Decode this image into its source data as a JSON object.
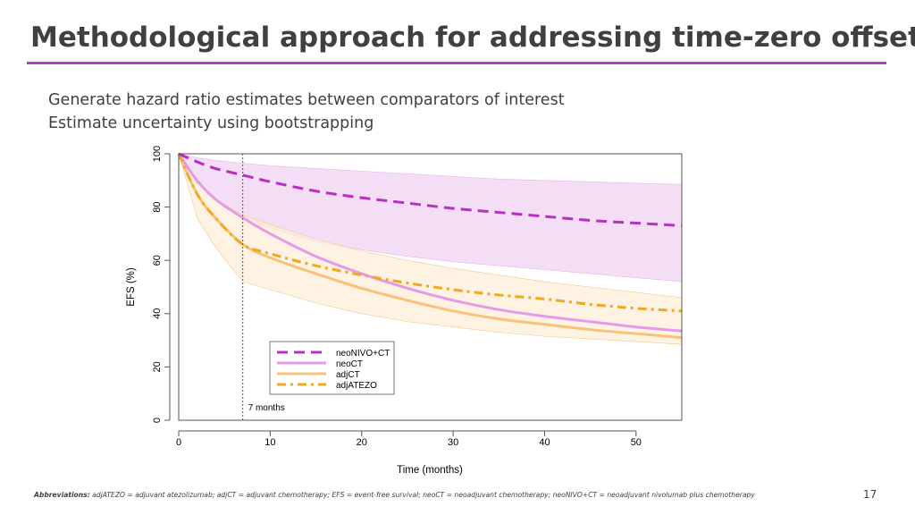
{
  "slide": {
    "title": "Methodological approach for addressing time-zero offset",
    "bullets": [
      "Generate hazard ratio estimates between comparators of interest",
      "Estimate uncertainty using bootstrapping"
    ],
    "footnote_label": "Abbreviations:",
    "footnote_text": "adjATEZO = adjuvant atezolizumab; adjCT = adjuvant chemotherapy; EFS = event-free survival; neoCT = neoadjuvant chemotherapy; neoNIVO+CT =  neoadjuvant nivolumab plus chemotherapy",
    "page_number": "17"
  },
  "colors": {
    "title_rule": "#b13fc2",
    "neoNIVO_CT": "#b92fc4",
    "neoCT": "#e59ae8",
    "adjCT": "#f7c27a",
    "adjATEZO": "#f0a91e",
    "neoNIVO_band": "#f1d8f5",
    "adj_band": "#fdeed8"
  },
  "chart_data": {
    "type": "line",
    "xlabel": "Time (months)",
    "ylabel": "EFS (%)",
    "xlim": [
      0,
      55
    ],
    "ylim": [
      0,
      100
    ],
    "xticks": [
      0,
      10,
      20,
      30,
      40,
      50
    ],
    "yticks": [
      0,
      20,
      40,
      60,
      80,
      100
    ],
    "grid": false,
    "legend_position": "bottom-center",
    "reference_line": {
      "x": 7,
      "label": "7 months"
    },
    "series": [
      {
        "name": "neoNIVO+CT",
        "style": "dashed",
        "x": [
          0,
          2,
          4,
          7,
          10,
          15,
          20,
          25,
          30,
          35,
          40,
          45,
          50,
          55
        ],
        "values": [
          100,
          97,
          94.5,
          92,
          89.5,
          86,
          83.5,
          81.5,
          79.5,
          78,
          76.5,
          75,
          74,
          73
        ]
      },
      {
        "name": "neoCT",
        "style": "solid",
        "x": [
          0,
          2,
          4,
          7,
          10,
          15,
          20,
          25,
          30,
          35,
          40,
          45,
          50,
          55
        ],
        "values": [
          100,
          90,
          83,
          76,
          70,
          61.5,
          55,
          49.5,
          45,
          41.5,
          39,
          37,
          35,
          33.5
        ]
      },
      {
        "name": "adjCT",
        "style": "solid",
        "x": [
          0,
          2,
          4,
          7,
          10,
          15,
          20,
          25,
          30,
          35,
          40,
          45,
          50,
          55
        ],
        "values": [
          100,
          85,
          76,
          66,
          61,
          55,
          49.5,
          45,
          41,
          38,
          36,
          34,
          32.5,
          31
        ]
      },
      {
        "name": "adjATEZO",
        "style": "dashdot",
        "x": [
          0,
          2,
          4,
          7,
          10,
          15,
          20,
          25,
          30,
          35,
          40,
          45,
          50,
          55
        ],
        "values": [
          100,
          85,
          76,
          66,
          62.5,
          58,
          54.5,
          51.5,
          49,
          47,
          45.5,
          43.5,
          42,
          41
        ]
      }
    ],
    "bands": [
      {
        "series": "neoNIVO+CT",
        "x": [
          0,
          2,
          4,
          7,
          10,
          15,
          20,
          25,
          30,
          35,
          40,
          45,
          50,
          55
        ],
        "upper": [
          100,
          98.5,
          97.5,
          96.5,
          95.5,
          94.5,
          93.5,
          92.5,
          91.5,
          90.5,
          90,
          89.5,
          89,
          88.5
        ],
        "lower": [
          100,
          90,
          83,
          76,
          72,
          67,
          64,
          61.5,
          59.5,
          58,
          56.5,
          55,
          53.5,
          52
        ]
      },
      {
        "series": "adjCT / adjATEZO",
        "x": [
          0,
          2,
          4,
          7,
          10,
          15,
          20,
          25,
          30,
          35,
          40,
          45,
          50,
          55
        ],
        "upper": [
          100,
          89,
          83,
          77,
          73.5,
          68,
          63.5,
          60,
          57,
          54.5,
          52,
          50,
          48,
          46
        ],
        "lower": [
          100,
          76,
          65,
          52,
          49,
          44,
          40,
          37,
          35,
          33,
          31.5,
          30.5,
          29.5,
          28.5
        ]
      }
    ]
  }
}
